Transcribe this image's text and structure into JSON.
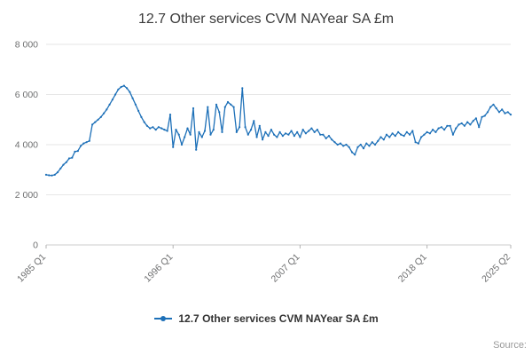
{
  "title": "12.7 Other services CVM NAYear SA £m",
  "legend": {
    "label": "12.7 Other services CVM NAYear SA £m"
  },
  "source_label": "Source:",
  "colors": {
    "line": "#1d70b8",
    "grid": "#e6e6e6",
    "axis": "#cccccc",
    "tick": "#b3b3b3",
    "axis_text": "#6f7071",
    "title_text": "#3b3b3b"
  },
  "chart_data": {
    "type": "line",
    "title": "12.7 Other services CVM NAYear SA £m",
    "xlabel": "",
    "ylabel": "",
    "x_start": "1985 Q1",
    "x_end": "2025 Q2",
    "frequency": "quarterly",
    "ylim": [
      0,
      8000
    ],
    "grid": true,
    "legend_position": "bottom",
    "y_ticks": [
      {
        "v": 0,
        "label": "0"
      },
      {
        "v": 2000,
        "label": "2 000"
      },
      {
        "v": 4000,
        "label": "4 000"
      },
      {
        "v": 6000,
        "label": "6 000"
      },
      {
        "v": 8000,
        "label": "8 000"
      }
    ],
    "x_ticks": [
      {
        "index": 0,
        "label": "1985 Q1"
      },
      {
        "index": 44,
        "label": "1996 Q1"
      },
      {
        "index": 88,
        "label": "2007 Q1"
      },
      {
        "index": 132,
        "label": "2018 Q1"
      },
      {
        "index": 161,
        "label": "2025 Q2"
      }
    ],
    "series": [
      {
        "name": "12.7 Other services CVM NAYear SA £m",
        "values": [
          2800,
          2780,
          2770,
          2800,
          2900,
          3050,
          3200,
          3300,
          3450,
          3480,
          3720,
          3750,
          3950,
          4050,
          4100,
          4150,
          4800,
          4900,
          5000,
          5100,
          5250,
          5400,
          5600,
          5800,
          6000,
          6200,
          6300,
          6350,
          6250,
          6100,
          5850,
          5600,
          5350,
          5100,
          4900,
          4750,
          4650,
          4700,
          4600,
          4700,
          4650,
          4600,
          4550,
          5200,
          3900,
          4600,
          4400,
          4000,
          4300,
          4650,
          4400,
          5450,
          3800,
          4500,
          4300,
          4550,
          5500,
          4400,
          4600,
          5600,
          5300,
          4500,
          5500,
          5700,
          5600,
          5500,
          4500,
          4700,
          6250,
          4700,
          4400,
          4600,
          4950,
          4300,
          4750,
          4200,
          4500,
          4350,
          4600,
          4400,
          4300,
          4500,
          4350,
          4450,
          4400,
          4550,
          4350,
          4500,
          4300,
          4600,
          4450,
          4550,
          4650,
          4500,
          4600,
          4400,
          4400,
          4250,
          4350,
          4200,
          4100,
          4000,
          4050,
          3950,
          4000,
          3900,
          3700,
          3600,
          3900,
          4000,
          3850,
          4050,
          3950,
          4100,
          4000,
          4150,
          4300,
          4200,
          4400,
          4300,
          4450,
          4350,
          4500,
          4400,
          4350,
          4500,
          4400,
          4550,
          4100,
          4050,
          4300,
          4400,
          4500,
          4450,
          4600,
          4500,
          4650,
          4700,
          4600,
          4750,
          4750,
          4400,
          4650,
          4800,
          4850,
          4750,
          4900,
          4800,
          4950,
          5050,
          4700,
          5100,
          5150,
          5300,
          5500,
          5600,
          5450,
          5300,
          5400,
          5250,
          5300,
          5200
        ]
      }
    ]
  }
}
